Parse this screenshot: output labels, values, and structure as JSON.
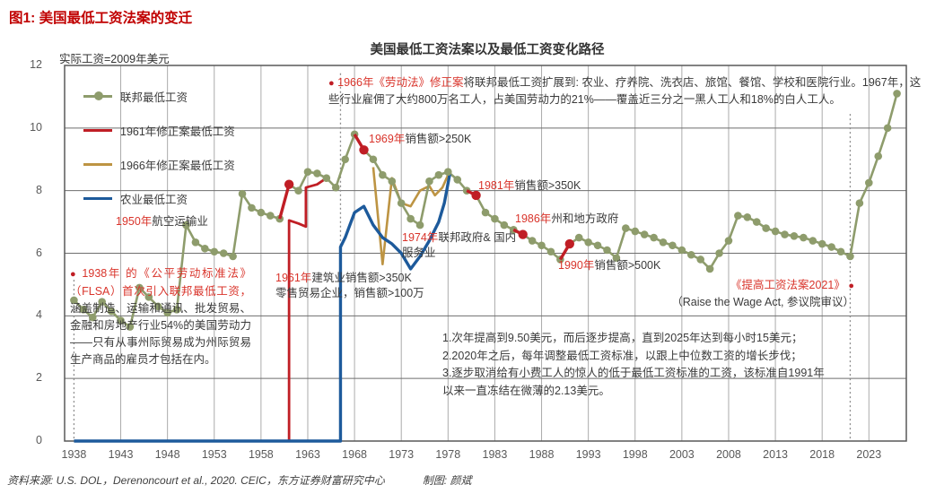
{
  "page": {
    "figure_title": "图1: 美国最低工资法案的变迁",
    "chart_title": "美国最低工资法案以及最低工资变化路径",
    "y_unit_label": "实际工资=2009年美元",
    "source_left": "资料来源: U.S. DOL，Derenoncourt et al., 2020. CEIC，东方证券财富研究中心",
    "source_right": "制图: 颜斌"
  },
  "colors": {
    "federal_green": "#8e9c6c",
    "amendment1961_red": "#c01e25",
    "amendment1966_gold": "#bd9443",
    "farm_blue": "#1d5a9b",
    "annotation_red": "#d9342b",
    "title_red": "#c00000",
    "axis_text": "#595959",
    "grid_vertical": "#ababab",
    "grid_horizontal": "#6e6e6e",
    "plot_border": "#595959"
  },
  "legend": [
    {
      "label": "联邦最低工资",
      "color": "#8e9c6c",
      "marker": true
    },
    {
      "label": "1961年修正案最低工资",
      "color": "#c01e25",
      "marker": false
    },
    {
      "label": "1966年修正案最低工资",
      "color": "#bd9443",
      "marker": false
    },
    {
      "label": "农业最低工资",
      "color": "#1d5a9b",
      "marker": false
    }
  ],
  "annotations": {
    "ann_1950": {
      "red": "1950年",
      "black": "航空运输业"
    },
    "ann_1938": {
      "bullet": "●",
      "red": "1938年 的《公平劳动标准法》（FLSA）首次引入联邦最低工资，",
      "black": "涵盖制造、运输和通讯、批发贸易、金融和房地产行业54%的美国劳动力——只有从事州际贸易成为州际贸易生产商品的雇员才包括在内。"
    },
    "ann_1961": {
      "red": "1961年",
      "black": "建筑业销售额>350K",
      "black2": "零售贸易企业，销售额>100万"
    },
    "ann_1966": {
      "bullet": "●",
      "red": "1966年《劳动法》修正案",
      "black": "将联邦最低工资扩展到: 农业、疗养院、洗衣店、旅馆、餐馆、学校和医院行业。1967年，这些行业雇佣了大约800万名工人，占美国劳动力的21%——覆盖近三分之一黑人工人和18%的白人工人。"
    },
    "ann_1969": {
      "red": "1969年",
      "black": "销售额>250K"
    },
    "ann_1974": {
      "red": "1974年",
      "black": "联邦政府& 国内服务业"
    },
    "ann_1981": {
      "red": "1981年",
      "black": "销售额>350K"
    },
    "ann_1986": {
      "red": "1986年",
      "black": "州和地方政府"
    },
    "ann_1990": {
      "red": "1990年",
      "black": "销售额>500K"
    },
    "ann_2021": {
      "red": "《提高工资法案2021》",
      "bullet": "●",
      "black": "（Raise the Wage Act, 参议院审议）"
    },
    "raise_act_notes": {
      "line1": "1.次年提高到9.50美元，而后逐步提高，直到2025年达到每小时15美元；",
      "line2": "2.2020年之后，每年调整最低工资标准，以跟上中位数工资的增长步伐；",
      "line3": "3.逐步取消给有小费工人的惊人的低于最低工资标准的工资，该标准自1991年以来一直冻结在微薄的2.13美元。"
    }
  },
  "chart_data": {
    "type": "line",
    "title": "美国最低工资法案以及最低工资变化路径",
    "xlabel": "",
    "ylabel": "实际工资=2009年美元",
    "ylim": [
      0,
      12
    ],
    "xlim": [
      1937,
      2027
    ],
    "y_ticks": [
      0,
      2,
      4,
      6,
      8,
      10,
      12
    ],
    "x_ticks": [
      1938,
      1943,
      1948,
      1953,
      1958,
      1963,
      1968,
      1973,
      1978,
      1983,
      1988,
      1993,
      1998,
      2003,
      2008,
      2013,
      2018,
      2023
    ],
    "grid": true,
    "legend_position": "top-left",
    "dotted_year_lines": [
      {
        "year": 1938,
        "from": 5.15,
        "to": 0
      },
      {
        "year": 1966.5,
        "from": 11.75,
        "to": 0
      },
      {
        "year": 2021,
        "from": 10.45,
        "to": 0
      }
    ],
    "series": [
      {
        "name": "联邦最低工资",
        "color": "#8e9c6c",
        "marker": "circle",
        "red_event_segments": [
          [
            1960,
            1961
          ],
          [
            1968,
            1969
          ],
          [
            1980,
            1981
          ],
          [
            1985,
            1986
          ],
          [
            1990,
            1991
          ]
        ],
        "points": [
          [
            1938,
            4.5
          ],
          [
            1939,
            4.2
          ],
          [
            1940,
            3.95
          ],
          [
            1941,
            4.45
          ],
          [
            1942,
            4.15
          ],
          [
            1943,
            3.85
          ],
          [
            1944,
            3.65
          ],
          [
            1945,
            4.9
          ],
          [
            1946,
            4.6
          ],
          [
            1947,
            4.3
          ],
          [
            1948,
            4.1
          ],
          [
            1949,
            4.2
          ],
          [
            1950,
            6.9
          ],
          [
            1951,
            6.35
          ],
          [
            1952,
            6.15
          ],
          [
            1953,
            6.05
          ],
          [
            1954,
            6.0
          ],
          [
            1955,
            5.9
          ],
          [
            1956,
            7.9
          ],
          [
            1957,
            7.45
          ],
          [
            1958,
            7.3
          ],
          [
            1959,
            7.2
          ],
          [
            1960,
            7.1
          ],
          [
            1961,
            8.2
          ],
          [
            1962,
            8.0
          ],
          [
            1963,
            8.6
          ],
          [
            1964,
            8.55
          ],
          [
            1965,
            8.4
          ],
          [
            1966,
            8.1
          ],
          [
            1967,
            9.0
          ],
          [
            1968,
            9.8
          ],
          [
            1969,
            9.3
          ],
          [
            1970,
            9.0
          ],
          [
            1971,
            8.5
          ],
          [
            1972,
            8.3
          ],
          [
            1973,
            7.6
          ],
          [
            1974,
            7.1
          ],
          [
            1975,
            6.9
          ],
          [
            1976,
            8.3
          ],
          [
            1977,
            8.5
          ],
          [
            1978,
            8.6
          ],
          [
            1979,
            8.35
          ],
          [
            1980,
            8.0
          ],
          [
            1981,
            7.85
          ],
          [
            1982,
            7.3
          ],
          [
            1983,
            7.1
          ],
          [
            1984,
            6.9
          ],
          [
            1985,
            6.75
          ],
          [
            1986,
            6.6
          ],
          [
            1987,
            6.4
          ],
          [
            1988,
            6.25
          ],
          [
            1989,
            6.05
          ],
          [
            1990,
            5.8
          ],
          [
            1991,
            6.3
          ],
          [
            1992,
            6.5
          ],
          [
            1993,
            6.35
          ],
          [
            1994,
            6.25
          ],
          [
            1995,
            6.1
          ],
          [
            1996,
            5.85
          ],
          [
            1997,
            6.8
          ],
          [
            1998,
            6.7
          ],
          [
            1999,
            6.6
          ],
          [
            2000,
            6.5
          ],
          [
            2001,
            6.35
          ],
          [
            2002,
            6.25
          ],
          [
            2003,
            6.1
          ],
          [
            2004,
            5.95
          ],
          [
            2005,
            5.8
          ],
          [
            2006,
            5.5
          ],
          [
            2007,
            6.0
          ],
          [
            2008,
            6.4
          ],
          [
            2009,
            7.2
          ],
          [
            2010,
            7.15
          ],
          [
            2011,
            7.0
          ],
          [
            2012,
            6.8
          ],
          [
            2013,
            6.7
          ],
          [
            2014,
            6.6
          ],
          [
            2015,
            6.55
          ],
          [
            2016,
            6.5
          ],
          [
            2017,
            6.4
          ],
          [
            2018,
            6.3
          ],
          [
            2019,
            6.2
          ],
          [
            2020,
            6.05
          ],
          [
            2021,
            5.9
          ],
          [
            2022,
            7.6
          ],
          [
            2023,
            8.25
          ],
          [
            2024,
            9.1
          ],
          [
            2025,
            10.0
          ],
          [
            2026,
            11.1
          ]
        ]
      },
      {
        "name": "1961年修正案最低工资",
        "color": "#c01e25",
        "marker": "none",
        "points": [
          [
            1961,
            0
          ],
          [
            1961,
            7.05
          ],
          [
            1962,
            6.95
          ],
          [
            1962.8,
            6.85
          ],
          [
            1962.8,
            8.1
          ],
          [
            1964,
            8.2
          ],
          [
            1965,
            8.4
          ]
        ]
      },
      {
        "name": "1966年修正案最低工资",
        "color": "#bd9443",
        "marker": "none",
        "points": [
          [
            1970,
            8.75
          ],
          [
            1971,
            5.65
          ],
          [
            1972,
            8.4
          ],
          [
            1973,
            7.6
          ],
          [
            1974,
            7.5
          ],
          [
            1975,
            8.0
          ],
          [
            1976,
            8.15
          ],
          [
            1976.6,
            7.85
          ],
          [
            1977.4,
            8.1
          ],
          [
            1978,
            8.5
          ]
        ]
      },
      {
        "name": "农业最低工资",
        "color": "#1d5a9b",
        "marker": "none",
        "points": [
          [
            1938,
            0
          ],
          [
            1966.5,
            0
          ],
          [
            1966.5,
            6.2
          ],
          [
            1967,
            6.5
          ],
          [
            1968,
            7.3
          ],
          [
            1969,
            7.5
          ],
          [
            1970,
            6.9
          ],
          [
            1971,
            6.5
          ],
          [
            1972,
            6.3
          ],
          [
            1973,
            6.0
          ],
          [
            1974,
            5.5
          ],
          [
            1975,
            5.9
          ],
          [
            1976,
            6.4
          ],
          [
            1977,
            7.0
          ],
          [
            1977.6,
            7.6
          ],
          [
            1978.2,
            8.55
          ]
        ]
      }
    ]
  }
}
